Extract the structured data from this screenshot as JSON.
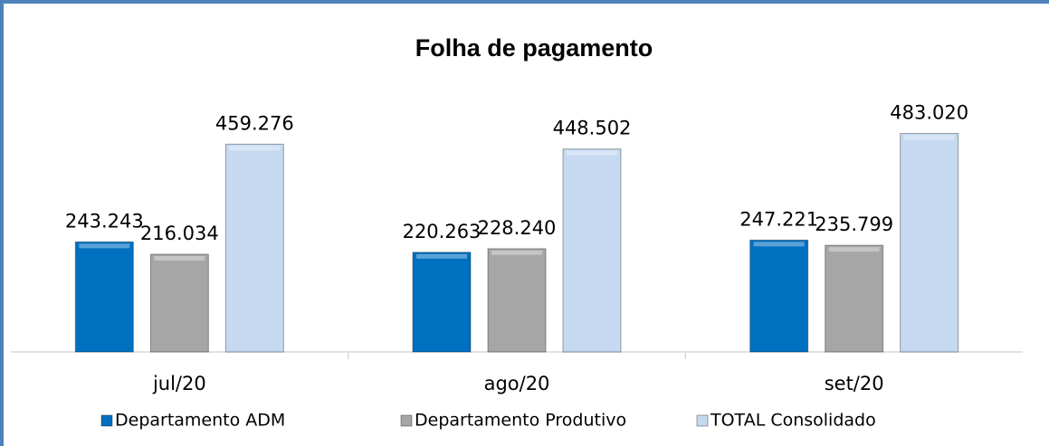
{
  "chart_data": {
    "type": "bar",
    "title": "Folha de pagamento",
    "categories": [
      "jul/20",
      "ago/20",
      "set/20"
    ],
    "series": [
      {
        "name": "Departamento ADM",
        "color": "#0070c0",
        "values": [
          243243,
          220263,
          247221
        ],
        "value_labels": [
          "243.243",
          "220.263",
          "247.221"
        ]
      },
      {
        "name": "Departamento Produtivo",
        "color": "#a6a6a6",
        "values": [
          216034,
          228240,
          235799
        ],
        "value_labels": [
          "216.034",
          "228.240",
          "235.799"
        ]
      },
      {
        "name": "TOTAL Consolidado",
        "color": "#c5d9f1",
        "values": [
          459276,
          448502,
          483020
        ],
        "value_labels": [
          "459.276",
          "448.502",
          "483.020"
        ]
      }
    ],
    "ylim": [
      0,
      600000
    ],
    "legend": "bottom"
  }
}
